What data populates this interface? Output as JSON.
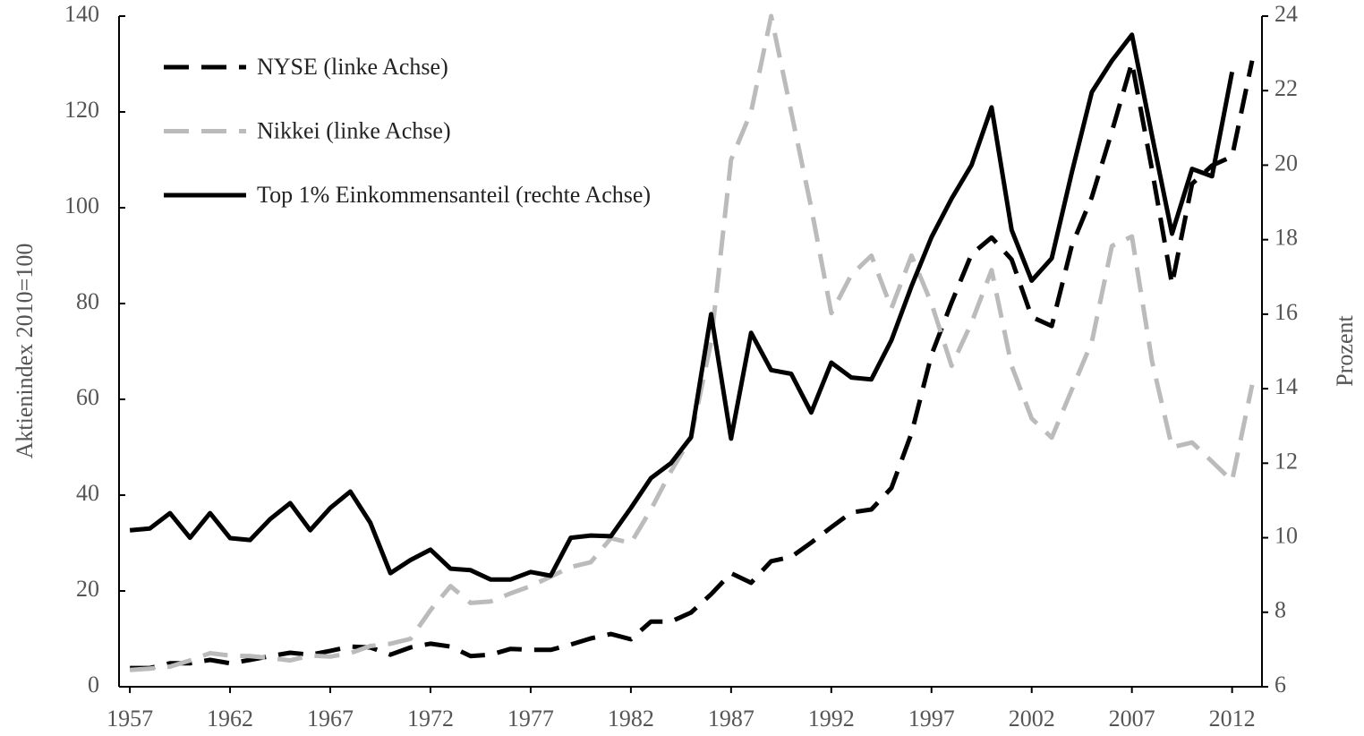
{
  "chart_data": {
    "type": "line",
    "x": [
      1957,
      1958,
      1959,
      1960,
      1961,
      1962,
      1963,
      1964,
      1965,
      1966,
      1967,
      1968,
      1969,
      1970,
      1971,
      1972,
      1973,
      1974,
      1975,
      1976,
      1977,
      1978,
      1979,
      1980,
      1981,
      1982,
      1983,
      1984,
      1985,
      1986,
      1987,
      1988,
      1989,
      1990,
      1991,
      1992,
      1993,
      1994,
      1995,
      1996,
      1997,
      1998,
      1999,
      2000,
      2001,
      2002,
      2003,
      2004,
      2005,
      2006,
      2007,
      2008,
      2009,
      2010,
      2011,
      2012,
      2013
    ],
    "series": [
      {
        "name": "NYSE (linke Achse)",
        "color": "#000000",
        "style": "dashed",
        "axis": "y",
        "values": [
          3.9,
          3.9,
          4.9,
          4.9,
          5.6,
          4.9,
          5.6,
          6.4,
          7.1,
          6.7,
          7.5,
          8.4,
          8.2,
          6.7,
          8.2,
          9.0,
          8.4,
          6.4,
          6.7,
          7.9,
          7.7,
          7.7,
          8.8,
          10.1,
          11.0,
          9.9,
          13.6,
          13.6,
          15.5,
          19.3,
          23.7,
          21.7,
          26.2,
          27.1,
          30.1,
          33.3,
          36.4,
          37.0,
          41.5,
          52.9,
          69.3,
          80.2,
          90.3,
          93.8,
          89.2,
          77.2,
          75.3,
          92.1,
          102.2,
          115.9,
          130.3,
          108.0,
          84.0,
          105.0,
          108.8,
          110.7,
          130.7
        ]
      },
      {
        "name": "Nikkei (linke Achse)",
        "color": "#bbbbbb",
        "style": "dashed",
        "axis": "y",
        "values": [
          3.5,
          3.8,
          4.2,
          5.5,
          7.0,
          6.5,
          6.4,
          6.0,
          5.5,
          6.5,
          6.3,
          7.0,
          8.5,
          9.0,
          10.0,
          16.0,
          21.0,
          17.5,
          17.8,
          19.5,
          21.0,
          23.0,
          25.0,
          26.0,
          31.0,
          30.0,
          37.0,
          45.0,
          52.0,
          72.0,
          110.0,
          120.0,
          140.0,
          120.0,
          100.0,
          78.0,
          86.0,
          90.0,
          79.0,
          90.0,
          80.0,
          67.0,
          76.0,
          87.0,
          67.0,
          56.0,
          52.0,
          62.0,
          72.0,
          92.0,
          94.0,
          68.0,
          50.0,
          51.0,
          47.0,
          43.0,
          63.0
        ]
      },
      {
        "name": "Top 1% Einkommensanteil (rechte Achse)",
        "color": "#000000",
        "style": "solid",
        "axis": "y2",
        "values": [
          10.2,
          10.25,
          10.66,
          10.0,
          10.66,
          9.99,
          9.94,
          10.5,
          10.93,
          10.2,
          10.8,
          11.24,
          10.4,
          9.05,
          9.4,
          9.68,
          9.17,
          9.13,
          8.88,
          8.88,
          9.08,
          8.98,
          10.0,
          10.06,
          10.04,
          10.8,
          11.6,
          12.0,
          12.7,
          16.0,
          12.66,
          15.5,
          14.5,
          14.4,
          13.36,
          14.7,
          14.3,
          14.25,
          15.3,
          16.75,
          18.07,
          19.1,
          20.0,
          21.55,
          18.26,
          16.9,
          17.5,
          19.8,
          21.96,
          22.8,
          23.5,
          20.8,
          18.16,
          19.9,
          19.7,
          22.5,
          null
        ]
      }
    ],
    "ylabel": "Aktienindex 2010=100",
    "y2label": "Prozent",
    "xlim": [
      1956.46,
      2013.49
    ],
    "xticks": [
      1957,
      1962,
      1967,
      1972,
      1977,
      1982,
      1987,
      1992,
      1997,
      2002,
      2007,
      2012
    ],
    "ylim": [
      0,
      140
    ],
    "yticks": [
      0,
      20,
      40,
      60,
      80,
      100,
      120,
      140
    ],
    "y2lim": [
      6,
      24
    ],
    "y2ticks": [
      6,
      8,
      10,
      12,
      14,
      16,
      18,
      20,
      22,
      24
    ],
    "legend": "top-left"
  }
}
